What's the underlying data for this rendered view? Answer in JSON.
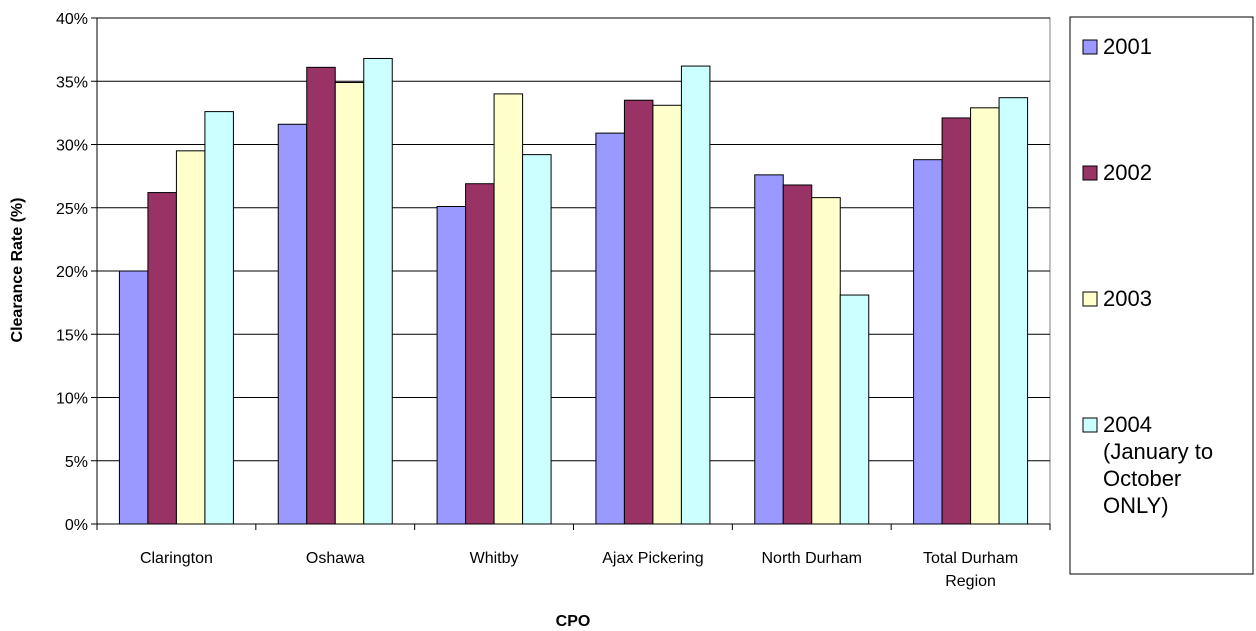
{
  "chart_data": {
    "type": "bar",
    "title": "",
    "xlabel": "CPO",
    "ylabel": "Clearance Rate (%)",
    "ylim": [
      0,
      40
    ],
    "yticks": [
      "0%",
      "5%",
      "10%",
      "15%",
      "20%",
      "25%",
      "30%",
      "35%",
      "40%"
    ],
    "grid": true,
    "legend_position": "right",
    "categories": [
      [
        "Clarington"
      ],
      [
        "Oshawa"
      ],
      [
        "Whitby"
      ],
      [
        "Ajax Pickering"
      ],
      [
        "North Durham"
      ],
      [
        "Total Durham",
        "Region"
      ]
    ],
    "series": [
      {
        "name": "2001",
        "legend_lines": [
          "2001"
        ],
        "color": "#9999ff",
        "values": [
          20.0,
          31.6,
          25.1,
          30.9,
          27.6,
          28.8
        ]
      },
      {
        "name": "2002",
        "legend_lines": [
          "2002"
        ],
        "color": "#993366",
        "values": [
          26.2,
          36.1,
          26.9,
          33.5,
          26.8,
          32.1
        ]
      },
      {
        "name": "2003",
        "legend_lines": [
          "2003"
        ],
        "color": "#ffffcc",
        "values": [
          29.5,
          34.9,
          34.0,
          33.1,
          25.8,
          32.9
        ]
      },
      {
        "name": "2004 (January to October ONLY)",
        "legend_lines": [
          "2004",
          "(January to",
          "October",
          "ONLY)"
        ],
        "color": "#ccffff",
        "values": [
          32.6,
          36.8,
          29.2,
          36.2,
          18.1,
          33.7
        ]
      }
    ]
  }
}
